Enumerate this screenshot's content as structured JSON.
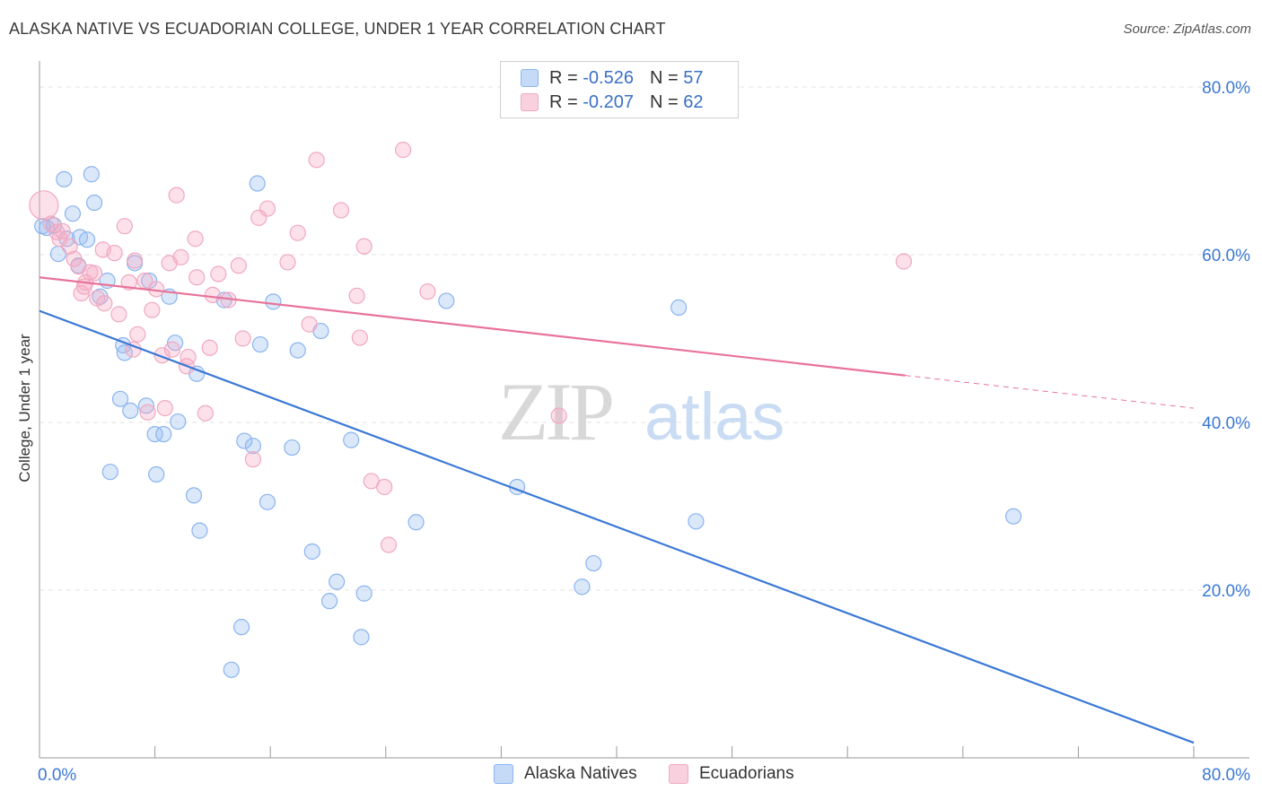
{
  "title": "ALASKA NATIVE VS ECUADORIAN COLLEGE, UNDER 1 YEAR CORRELATION CHART",
  "source": "Source: ZipAtlas.com",
  "watermark": {
    "zip": "ZIP",
    "atlas": "atlas"
  },
  "legend": {
    "r_label": "R =",
    "n_label": "N =",
    "rows": [
      {
        "r": "-0.526",
        "n": "57",
        "color": "#8ab4f0",
        "fill": "#c5daf7"
      },
      {
        "r": "-0.207",
        "n": "62",
        "color": "#f0a8c0",
        "fill": "#f9d0de"
      }
    ]
  },
  "bottom_legend": [
    {
      "label": "Alaska Natives",
      "color": "#8ab4f0",
      "fill": "#c5daf7"
    },
    {
      "label": "Ecuadorians",
      "color": "#f0a8c0",
      "fill": "#f9d0de"
    }
  ],
  "chart_data": {
    "type": "scatter",
    "xlabel": "",
    "ylabel": "College, Under 1 year",
    "xlim": [
      0,
      80
    ],
    "ylim": [
      0,
      80
    ],
    "x_tick_labels": [
      "0.0%",
      "80.0%"
    ],
    "y_tick_labels": [
      "20.0%",
      "40.0%",
      "60.0%",
      "80.0%"
    ],
    "y_ticks": [
      20,
      40,
      60,
      80
    ],
    "grid": true,
    "legend_position": "top-center",
    "series": [
      {
        "name": "Alaska Natives",
        "color": "#3a78d6",
        "point_color": "#8ab4f0",
        "trend": {
          "x0": 0,
          "y0": 53.3,
          "x1": 80,
          "y1": 1.8,
          "solid_to": 80
        },
        "points": [
          [
            0.5,
            63.2
          ],
          [
            1.0,
            63.5
          ],
          [
            1.7,
            69.0
          ],
          [
            2.3,
            64.9
          ],
          [
            1.3,
            60.1
          ],
          [
            1.9,
            61.9
          ],
          [
            2.8,
            62.1
          ],
          [
            3.3,
            61.8
          ],
          [
            3.6,
            69.6
          ],
          [
            3.8,
            66.2
          ],
          [
            2.7,
            58.7
          ],
          [
            4.2,
            55.0
          ],
          [
            4.7,
            56.9
          ],
          [
            5.8,
            49.2
          ],
          [
            5.9,
            48.3
          ],
          [
            6.6,
            59.0
          ],
          [
            7.6,
            56.9
          ],
          [
            9.0,
            55.0
          ],
          [
            9.4,
            49.5
          ],
          [
            5.6,
            42.8
          ],
          [
            6.3,
            41.4
          ],
          [
            7.4,
            42.0
          ],
          [
            8.0,
            38.6
          ],
          [
            8.6,
            38.6
          ],
          [
            9.6,
            40.1
          ],
          [
            10.9,
            45.8
          ],
          [
            4.9,
            34.1
          ],
          [
            8.1,
            33.8
          ],
          [
            10.7,
            31.3
          ],
          [
            11.1,
            27.1
          ],
          [
            12.8,
            54.6
          ],
          [
            14.2,
            37.8
          ],
          [
            15.3,
            49.3
          ],
          [
            14.8,
            37.2
          ],
          [
            15.8,
            30.5
          ],
          [
            15.1,
            68.5
          ],
          [
            16.2,
            54.4
          ],
          [
            17.5,
            37.0
          ],
          [
            17.9,
            48.6
          ],
          [
            18.9,
            24.6
          ],
          [
            19.5,
            50.9
          ],
          [
            20.1,
            18.7
          ],
          [
            20.6,
            21.0
          ],
          [
            21.6,
            37.9
          ],
          [
            22.3,
            14.4
          ],
          [
            22.5,
            19.6
          ],
          [
            13.3,
            10.5
          ],
          [
            14.0,
            15.6
          ],
          [
            26.1,
            28.1
          ],
          [
            28.2,
            54.5
          ],
          [
            33.1,
            32.3
          ],
          [
            37.6,
            20.4
          ],
          [
            38.4,
            23.2
          ],
          [
            44.3,
            53.7
          ],
          [
            45.5,
            28.2
          ],
          [
            67.5,
            28.8
          ],
          [
            0.2,
            63.4
          ]
        ]
      },
      {
        "name": "Ecuadorians",
        "color": "#e8739a",
        "point_color": "#f0a8c0",
        "trend": {
          "x0": 0,
          "y0": 57.3,
          "x1": 80,
          "y1": 41.7,
          "solid_to": 60
        },
        "points": [
          [
            0.3,
            65.9
          ],
          [
            0.8,
            63.7
          ],
          [
            1.2,
            62.7
          ],
          [
            1.4,
            61.9
          ],
          [
            2.1,
            61.0
          ],
          [
            2.4,
            59.5
          ],
          [
            2.7,
            58.6
          ],
          [
            2.9,
            55.4
          ],
          [
            3.2,
            56.7
          ],
          [
            3.5,
            57.9
          ],
          [
            3.8,
            57.8
          ],
          [
            4.5,
            54.2
          ],
          [
            4.4,
            60.6
          ],
          [
            5.2,
            60.2
          ],
          [
            5.5,
            52.9
          ],
          [
            5.9,
            63.4
          ],
          [
            6.2,
            56.7
          ],
          [
            6.6,
            59.3
          ],
          [
            6.8,
            50.5
          ],
          [
            7.3,
            56.9
          ],
          [
            7.5,
            41.2
          ],
          [
            7.8,
            53.4
          ],
          [
            8.1,
            55.9
          ],
          [
            8.5,
            48.0
          ],
          [
            8.7,
            41.7
          ],
          [
            9.2,
            48.7
          ],
          [
            9.5,
            67.1
          ],
          [
            9.8,
            59.7
          ],
          [
            10.2,
            46.7
          ],
          [
            10.3,
            47.8
          ],
          [
            10.8,
            61.9
          ],
          [
            10.9,
            57.3
          ],
          [
            11.5,
            41.1
          ],
          [
            11.8,
            48.9
          ],
          [
            12.0,
            55.2
          ],
          [
            12.4,
            57.7
          ],
          [
            13.1,
            54.6
          ],
          [
            13.8,
            58.7
          ],
          [
            14.1,
            50.0
          ],
          [
            14.8,
            35.6
          ],
          [
            15.2,
            64.4
          ],
          [
            15.8,
            65.5
          ],
          [
            17.2,
            59.1
          ],
          [
            17.9,
            62.6
          ],
          [
            18.7,
            51.7
          ],
          [
            19.2,
            71.3
          ],
          [
            20.9,
            65.3
          ],
          [
            22.0,
            55.1
          ],
          [
            22.2,
            50.1
          ],
          [
            22.5,
            61.0
          ],
          [
            23.0,
            33.0
          ],
          [
            23.9,
            32.3
          ],
          [
            24.2,
            25.4
          ],
          [
            25.2,
            72.5
          ],
          [
            26.9,
            55.6
          ],
          [
            36.0,
            40.8
          ],
          [
            59.9,
            59.2
          ],
          [
            4.0,
            54.8
          ],
          [
            6.5,
            48.7
          ],
          [
            9.0,
            59.0
          ],
          [
            1.6,
            62.8
          ],
          [
            3.1,
            56.2
          ]
        ]
      }
    ]
  }
}
